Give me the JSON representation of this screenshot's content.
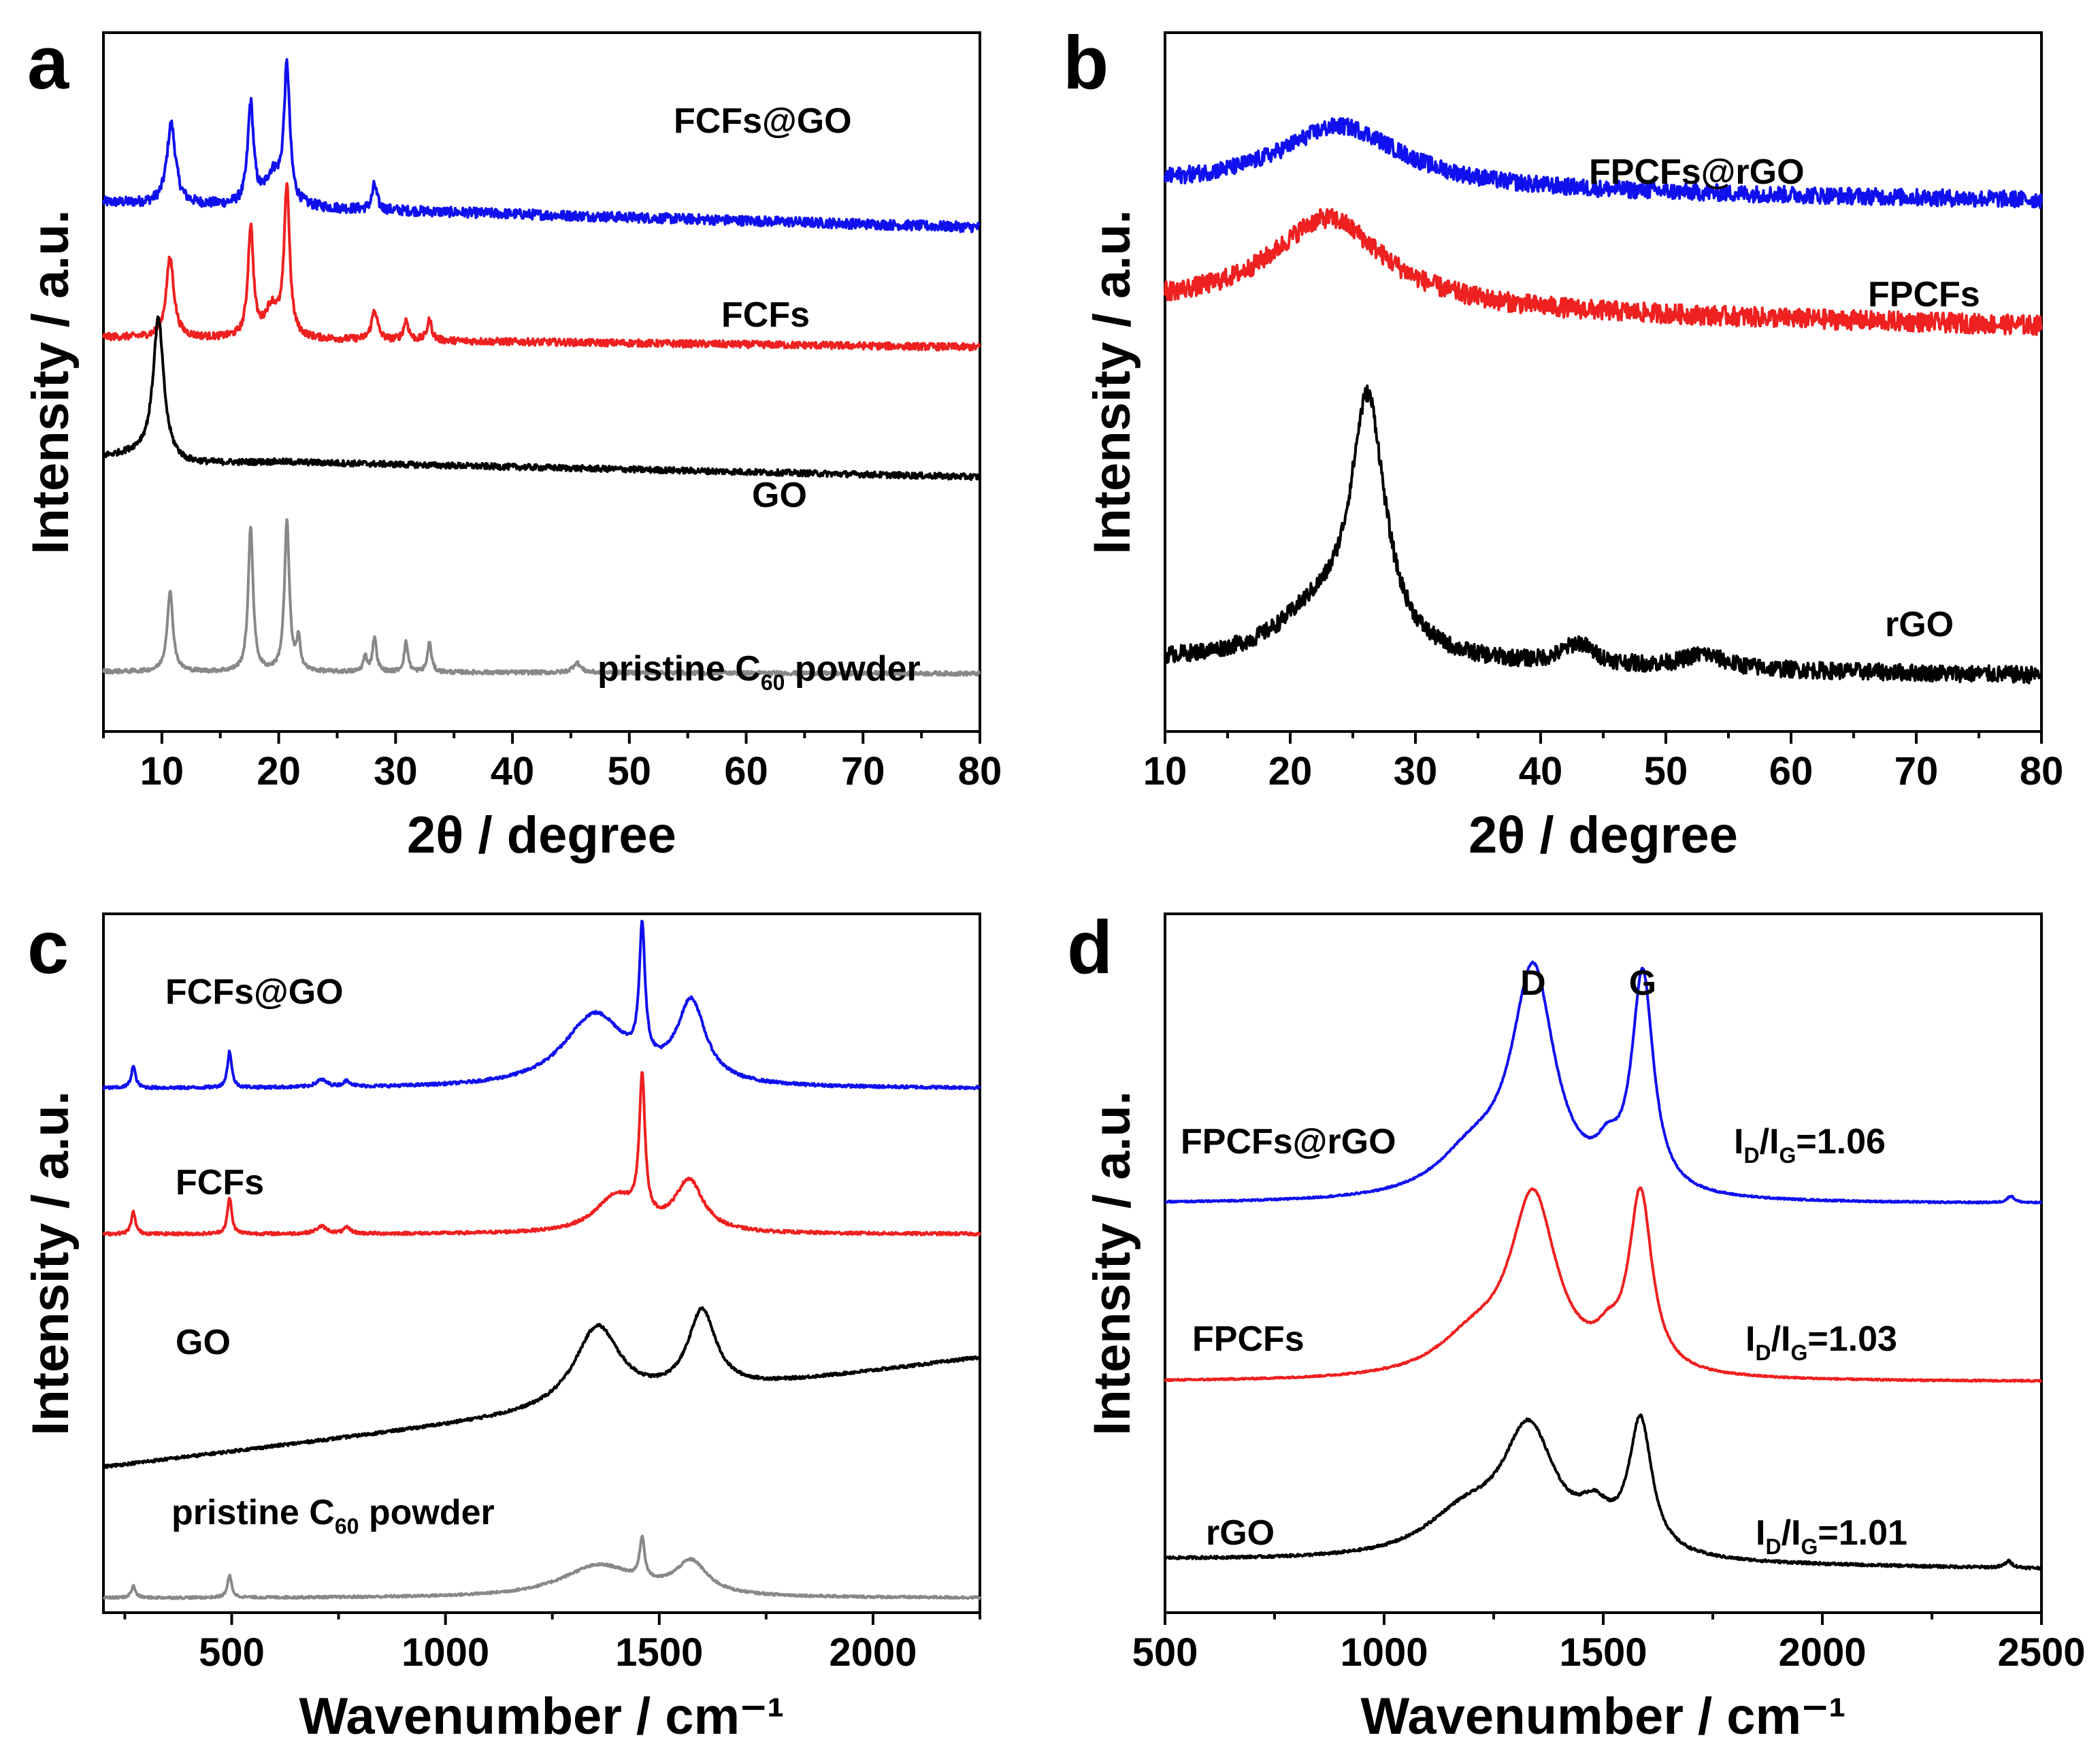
{
  "chart_data": [
    {
      "panel": "a",
      "type": "line",
      "title": "",
      "xlabel": "2θ / degree",
      "ylabel": "Intensity / a.u.",
      "xlim": [
        5,
        80
      ],
      "xticks": [
        10,
        20,
        30,
        40,
        50,
        60,
        70,
        80
      ],
      "grid": false,
      "series": [
        {
          "name": "FCFs@GO",
          "color": "#1010ee",
          "baseline": 5.3,
          "noise": 0.05,
          "baseline_points": [
            [
              5,
              5.3
            ],
            [
              80,
              5.05
            ]
          ],
          "peaks": [
            [
              10.8,
              0.8,
              0.45
            ],
            [
              17.6,
              1.0,
              0.3
            ],
            [
              19.5,
              0.3,
              0.8
            ],
            [
              20.7,
              1.35,
              0.3
            ],
            [
              28.2,
              0.25,
              0.25
            ]
          ]
        },
        {
          "name": "FCFs",
          "color": "#ee2020",
          "baseline": 3.95,
          "noise": 0.035,
          "baseline_points": [
            [
              5,
              3.95
            ],
            [
              80,
              3.85
            ]
          ],
          "peaks": [
            [
              10.7,
              0.8,
              0.4
            ],
            [
              17.6,
              1.1,
              0.28
            ],
            [
              19.4,
              0.3,
              0.7
            ],
            [
              20.7,
              1.5,
              0.28
            ],
            [
              28.2,
              0.3,
              0.3
            ],
            [
              30.9,
              0.2,
              0.25
            ],
            [
              32.9,
              0.2,
              0.25
            ]
          ]
        },
        {
          "name": "GO",
          "color": "#000000",
          "baseline": 2.75,
          "noise": 0.03,
          "baseline_points": [
            [
              5,
              2.75
            ],
            [
              8,
              2.78
            ],
            [
              12,
              2.68
            ],
            [
              20,
              2.7
            ],
            [
              80,
              2.55
            ]
          ],
          "peaks": [
            [
              9.7,
              1.4,
              0.55
            ]
          ]
        },
        {
          "name": "pristine C60 powder",
          "color": "#888888",
          "baseline": 0.6,
          "noise": 0.02,
          "baseline_points": [
            [
              5,
              0.6
            ],
            [
              80,
              0.58
            ]
          ],
          "peaks": [
            [
              10.7,
              0.8,
              0.3
            ],
            [
              17.6,
              1.45,
              0.25
            ],
            [
              20.7,
              1.5,
              0.25
            ],
            [
              21.7,
              0.3,
              0.2
            ],
            [
              27.4,
              0.15,
              0.2
            ],
            [
              28.2,
              0.35,
              0.2
            ],
            [
              30.9,
              0.3,
              0.2
            ],
            [
              32.9,
              0.3,
              0.2
            ],
            [
              45.5,
              0.1,
              0.4
            ]
          ]
        }
      ]
    },
    {
      "panel": "b",
      "type": "line",
      "title": "",
      "xlabel": "2θ / degree",
      "ylabel": "Intensity / a.u.",
      "xlim": [
        10,
        80
      ],
      "xticks": [
        10,
        20,
        30,
        40,
        50,
        60,
        70,
        80
      ],
      "grid": false,
      "series": [
        {
          "name": "FPCFs@rGO",
          "color": "#1010ee",
          "baseline": 3.9,
          "noise": 0.06,
          "baseline_points": [
            [
              10,
              3.9
            ],
            [
              80,
              3.8
            ]
          ],
          "peaks": [
            [
              24,
              0.45,
              6
            ]
          ]
        },
        {
          "name": "FPCFs",
          "color": "#ee2020",
          "baseline": 3.05,
          "noise": 0.07,
          "baseline_points": [
            [
              10,
              3.05
            ],
            [
              80,
              2.9
            ]
          ],
          "peaks": [
            [
              23,
              0.65,
              5.5
            ]
          ]
        },
        {
          "name": "rGO",
          "color": "#000000",
          "baseline": 0.5,
          "noise": 0.06,
          "baseline_points": [
            [
              10,
              0.5
            ],
            [
              80,
              0.4
            ]
          ],
          "peaks": [
            [
              26.2,
              1.8,
              1.7
            ],
            [
              22,
              0.3,
              4
            ],
            [
              43,
              0.15,
              1.5
            ],
            [
              53,
              0.1,
              2
            ]
          ]
        }
      ]
    },
    {
      "panel": "c",
      "type": "line",
      "title": "",
      "xlabel": "Wavenumber / cm⁻¹",
      "ylabel": "Intensity / a.u.",
      "xlim": [
        200,
        2250
      ],
      "xticks": [
        500,
        1000,
        1500,
        2000
      ],
      "grid": false,
      "series": [
        {
          "name": "FCFs@GO",
          "color": "#1010ee",
          "baseline": 3.6,
          "noise": 0.01,
          "baseline_points": [
            [
              200,
              3.6
            ],
            [
              2250,
              3.6
            ]
          ],
          "peaks": [
            [
              270,
              0.15,
              6
            ],
            [
              495,
              0.25,
              6
            ],
            [
              710,
              0.05,
              15
            ],
            [
              770,
              0.04,
              10
            ],
            [
              1350,
              0.5,
              90
            ],
            [
              1460,
              0.9,
              8
            ],
            [
              1575,
              0.55,
              40
            ]
          ]
        },
        {
          "name": "FCFs",
          "color": "#ee2020",
          "baseline": 2.6,
          "noise": 0.01,
          "baseline_points": [
            [
              200,
              2.6
            ],
            [
              2250,
              2.6
            ]
          ],
          "peaks": [
            [
              270,
              0.15,
              6
            ],
            [
              495,
              0.25,
              6
            ],
            [
              710,
              0.05,
              15
            ],
            [
              770,
              0.04,
              10
            ],
            [
              1400,
              0.25,
              60
            ],
            [
              1460,
              0.95,
              8
            ],
            [
              1570,
              0.35,
              40
            ]
          ]
        },
        {
          "name": "GO",
          "color": "#000000",
          "baseline": 1.0,
          "noise": 0.01,
          "baseline_points": [
            [
              200,
              1.0
            ],
            [
              1200,
              1.35
            ],
            [
              2250,
              1.75
            ]
          ],
          "peaks": [
            [
              1355,
              0.55,
              65
            ],
            [
              1600,
              0.55,
              40
            ]
          ]
        },
        {
          "name": "pristine C60 powder",
          "color": "#888888",
          "baseline": 0.1,
          "noise": 0.008,
          "baseline_points": [
            [
              200,
              0.1
            ],
            [
              2250,
              0.1
            ]
          ],
          "peaks": [
            [
              270,
              0.08,
              6
            ],
            [
              495,
              0.15,
              6
            ],
            [
              1360,
              0.22,
              110
            ],
            [
              1460,
              0.28,
              7
            ],
            [
              1575,
              0.22,
              45
            ]
          ]
        }
      ]
    },
    {
      "panel": "d",
      "type": "line",
      "title": "",
      "xlabel": "Wavenumber / cm⁻¹",
      "ylabel": "Intensity / a.u.",
      "xlim": [
        500,
        2500
      ],
      "xticks": [
        500,
        1000,
        1500,
        2000,
        2500
      ],
      "grid": false,
      "annotations": [
        {
          "text": "D",
          "x": 1340
        },
        {
          "text": "G",
          "x": 1590
        }
      ],
      "series": [
        {
          "name": "FPCFs@rGO",
          "color": "#1010ee",
          "baseline": 3.1,
          "noise": 0.006,
          "ratio_main": "I",
          "ratio_sub1": "D",
          "ratio_mid": "/I",
          "ratio_sub2": "G",
          "ratio_value": "=1.06",
          "baseline_points": [
            [
              500,
              3.1
            ],
            [
              2500,
              3.1
            ]
          ],
          "peaks": [
            [
              1340,
              1.7,
              60
            ],
            [
              1590,
              1.65,
              30
            ],
            [
              1200,
              0.3,
              100
            ],
            [
              1510,
              0.2,
              30
            ],
            [
              2430,
              0.05,
              10
            ]
          ]
        },
        {
          "name": "FPCFs",
          "color": "#ee2020",
          "baseline": 1.75,
          "noise": 0.006,
          "ratio_main": "I",
          "ratio_sub1": "D",
          "ratio_mid": "/I",
          "ratio_sub2": "G",
          "ratio_value": "=1.03",
          "baseline_points": [
            [
              500,
              1.75
            ],
            [
              2500,
              1.75
            ]
          ],
          "peaks": [
            [
              1340,
              1.35,
              65
            ],
            [
              1585,
              1.35,
              32
            ],
            [
              1200,
              0.25,
              100
            ],
            [
              1510,
              0.15,
              30
            ]
          ]
        },
        {
          "name": "rGO",
          "color": "#000000",
          "baseline": 0.4,
          "noise": 0.01,
          "ratio_main": "I",
          "ratio_sub1": "D",
          "ratio_mid": "/I",
          "ratio_sub2": "G",
          "ratio_value": "=1.01",
          "baseline_points": [
            [
              500,
              0.4
            ],
            [
              2500,
              0.33
            ]
          ],
          "peaks": [
            [
              1330,
              0.95,
              75
            ],
            [
              1585,
              1.0,
              32
            ],
            [
              1180,
              0.3,
              110
            ],
            [
              1480,
              0.25,
              45
            ],
            [
              2425,
              0.05,
              10
            ]
          ]
        }
      ]
    }
  ]
}
